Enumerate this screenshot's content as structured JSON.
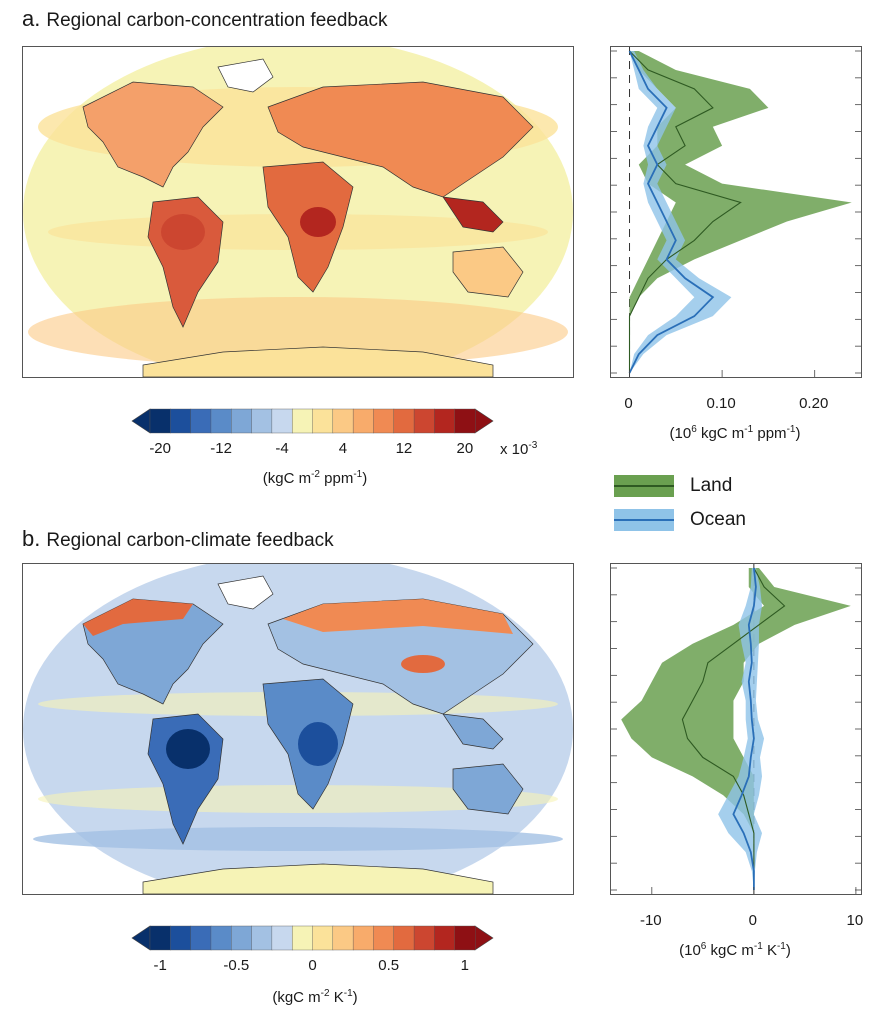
{
  "panels": [
    {
      "letter": "a.",
      "title": "Regional carbon-concentration feedback",
      "colorbar": {
        "tick_labels": [
          "-20",
          "-12",
          "-4",
          "4",
          "12",
          "20"
        ],
        "multiplier": "x 10",
        "multiplier_exp": "-3",
        "unit_prefix": "(kgC m",
        "unit_exp1": "-2",
        "unit_mid": " ppm",
        "unit_exp2": "-1",
        "unit_suffix": ")"
      },
      "profile_axis": {
        "ticks": [
          "0",
          "0.10",
          "0.20"
        ],
        "unit_prefix": "(10",
        "unit_sup": "6",
        "unit_mid": " kgC m",
        "unit_sup2": "-1",
        "unit_mid2": " ppm",
        "unit_sup3": "-1",
        "unit_suffix": ")"
      }
    },
    {
      "letter": "b.",
      "title": "Regional carbon-climate feedback",
      "colorbar": {
        "tick_labels": [
          "-1",
          "-0.5",
          "0",
          "0.5",
          "1"
        ],
        "unit_prefix": "(kgC m",
        "unit_exp1": "-2",
        "unit_mid": " K",
        "unit_exp2": "-1",
        "unit_suffix": ")"
      },
      "profile_axis": {
        "ticks": [
          "-10",
          "0",
          "10"
        ],
        "unit_prefix": "(10",
        "unit_sup": "6",
        "unit_mid": " kgC m",
        "unit_sup2": "-1",
        "unit_mid2": " K",
        "unit_sup3": "-1",
        "unit_suffix": ")"
      }
    }
  ],
  "legend": {
    "land": "Land",
    "ocean": "Ocean"
  },
  "colors": {
    "land_fill": "#6aa050",
    "land_line": "#2e5a22",
    "ocean_fill": "#8fc3e8",
    "ocean_line": "#2a6fb8",
    "palette": [
      "#08306b",
      "#1c4f9c",
      "#3a6cb7",
      "#5a8bc8",
      "#7ea7d6",
      "#a3c1e3",
      "#c7d8ee",
      "#f6f3b6",
      "#fbe29a",
      "#fbc985",
      "#f8ab6b",
      "#f08a53",
      "#e26a3f",
      "#cc4630",
      "#b3261f",
      "#8e1014"
    ]
  },
  "chart_data": [
    {
      "type": "line",
      "title": "Regional carbon-concentration feedback",
      "orientation": "vertical profile (latitude on y, value on x)",
      "xlim": [
        -0.02,
        0.25
      ],
      "y_domain": "latitude, north (top) to south (bottom)",
      "x_ticks": [
        0,
        0.1,
        0.2
      ],
      "series": [
        {
          "name": "Land",
          "lat": [
            85,
            75,
            65,
            55,
            45,
            35,
            25,
            15,
            5,
            -5,
            -15,
            -25,
            -35,
            -45,
            -55,
            -65,
            -75,
            -85
          ],
          "mean": [
            0.0,
            0.02,
            0.07,
            0.09,
            0.05,
            0.06,
            0.03,
            0.05,
            0.12,
            0.09,
            0.07,
            0.04,
            0.02,
            0.01,
            0.0,
            0.0,
            0.0,
            0.0
          ],
          "low": [
            0.0,
            0.01,
            0.03,
            0.05,
            0.03,
            0.03,
            0.01,
            0.02,
            0.05,
            0.04,
            0.03,
            0.02,
            0.01,
            0.0,
            0.0,
            0.0,
            0.0,
            0.0
          ],
          "high": [
            0.01,
            0.05,
            0.13,
            0.15,
            0.09,
            0.1,
            0.06,
            0.1,
            0.24,
            0.17,
            0.12,
            0.07,
            0.03,
            0.01,
            0.0,
            0.0,
            0.0,
            0.0
          ]
        },
        {
          "name": "Ocean",
          "lat": [
            85,
            75,
            65,
            55,
            45,
            35,
            25,
            15,
            5,
            -5,
            -15,
            -25,
            -35,
            -45,
            -55,
            -65,
            -75,
            -85
          ],
          "mean": [
            0.0,
            0.01,
            0.02,
            0.04,
            0.03,
            0.02,
            0.03,
            0.02,
            0.03,
            0.04,
            0.05,
            0.04,
            0.06,
            0.09,
            0.07,
            0.03,
            0.01,
            0.0
          ],
          "low": [
            0.0,
            0.005,
            0.01,
            0.03,
            0.02,
            0.015,
            0.02,
            0.015,
            0.02,
            0.03,
            0.04,
            0.03,
            0.05,
            0.07,
            0.05,
            0.02,
            0.005,
            0.0
          ],
          "high": [
            0.005,
            0.015,
            0.03,
            0.05,
            0.04,
            0.03,
            0.04,
            0.03,
            0.04,
            0.05,
            0.06,
            0.05,
            0.075,
            0.11,
            0.09,
            0.04,
            0.015,
            0.0
          ]
        }
      ]
    },
    {
      "type": "line",
      "title": "Regional carbon-climate feedback",
      "orientation": "vertical profile (latitude on y, value on x)",
      "xlim": [
        -14,
        10.5
      ],
      "y_domain": "latitude, north (top) to south (bottom)",
      "x_ticks": [
        -10,
        0,
        10
      ],
      "series": [
        {
          "name": "Land",
          "lat": [
            85,
            75,
            65,
            55,
            45,
            35,
            25,
            15,
            5,
            -5,
            -15,
            -25,
            -35,
            -45,
            -55,
            -65,
            -75,
            -85
          ],
          "mean": [
            0.0,
            1,
            3,
            0.5,
            -2,
            -4.5,
            -5,
            -6,
            -7,
            -6.5,
            -5,
            -2,
            -1,
            -0.5,
            0.0,
            0.0,
            0.0,
            0.0
          ],
          "low": [
            -0.5,
            -0.5,
            1,
            -2,
            -6,
            -9,
            -10,
            -11,
            -13,
            -12,
            -10,
            -6,
            -3,
            -1,
            0.0,
            0.0,
            0.0,
            0.0
          ],
          "high": [
            0.5,
            2,
            9.5,
            4,
            0.5,
            -1,
            -1,
            -2,
            -2,
            -2,
            -1,
            0,
            0,
            0,
            0.0,
            0.0,
            0.0,
            0.0
          ]
        },
        {
          "name": "Ocean",
          "lat": [
            85,
            75,
            65,
            55,
            45,
            35,
            25,
            15,
            5,
            -5,
            -15,
            -25,
            -35,
            -45,
            -55,
            -65,
            -75,
            -85
          ],
          "mean": [
            0.0,
            0.2,
            0.0,
            -0.5,
            -0.3,
            -0.2,
            -0.5,
            -0.3,
            -0.2,
            0.0,
            -0.3,
            -0.5,
            -1.2,
            -2.0,
            -1.0,
            -0.3,
            0.0,
            0.0
          ],
          "low": [
            -0.2,
            -0.3,
            -0.8,
            -1.5,
            -1.2,
            -0.8,
            -1.2,
            -0.8,
            -0.8,
            -0.6,
            -1.0,
            -1.5,
            -2.5,
            -3.5,
            -2.5,
            -0.8,
            -0.2,
            0.0
          ],
          "high": [
            0.2,
            0.6,
            0.8,
            0.5,
            0.5,
            0.4,
            0.3,
            0.2,
            0.4,
            1.0,
            0.6,
            0.8,
            0.5,
            0.0,
            0.8,
            0.3,
            0.1,
            0.0
          ]
        }
      ]
    }
  ]
}
